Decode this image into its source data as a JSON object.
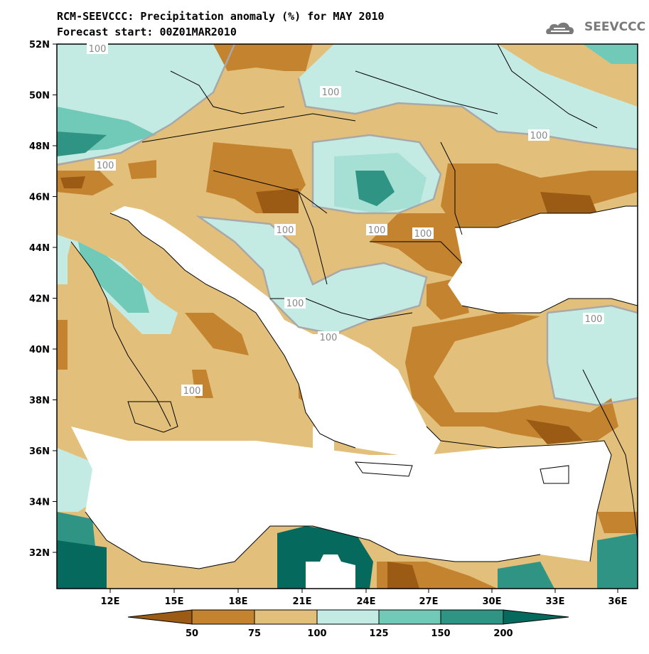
{
  "title_line1": "RCM-SEEVCCC: Precipitation anomaly (%) for MAY 2010",
  "title_line2": "Forecast start: 00Z01MAR2010",
  "logo_text": "SEEVCCC",
  "logo_icon": "cloud-icon",
  "map": {
    "lat_labels": [
      "52N",
      "50N",
      "48N",
      "46N",
      "44N",
      "42N",
      "40N",
      "38N",
      "36N",
      "34N",
      "32N"
    ],
    "lon_labels": [
      "12E",
      "15E",
      "18E",
      "21E",
      "24E",
      "27E",
      "30E",
      "33E",
      "36E"
    ],
    "contour_labels": [
      "100",
      "100",
      "100",
      "100",
      "100",
      "100",
      "100",
      "100",
      "100",
      "100",
      "100"
    ]
  },
  "colorbar": {
    "tick_labels": [
      "50",
      "75",
      "100",
      "125",
      "150",
      "200"
    ],
    "colors": [
      "#9c5b14",
      "#c4842f",
      "#e2c07c",
      "#c4ebe3",
      "#71c9b8",
      "#2f9484",
      "#06695e"
    ]
  }
}
